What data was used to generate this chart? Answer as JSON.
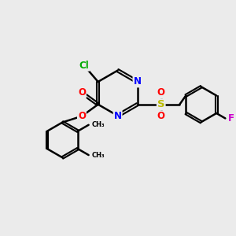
{
  "bg_color": "#ebebeb",
  "bond_color": "#000000",
  "bond_width": 1.8,
  "figsize": [
    3.0,
    3.0
  ],
  "dpi": 100,
  "xlim": [
    0,
    10
  ],
  "ylim": [
    0,
    10
  ]
}
